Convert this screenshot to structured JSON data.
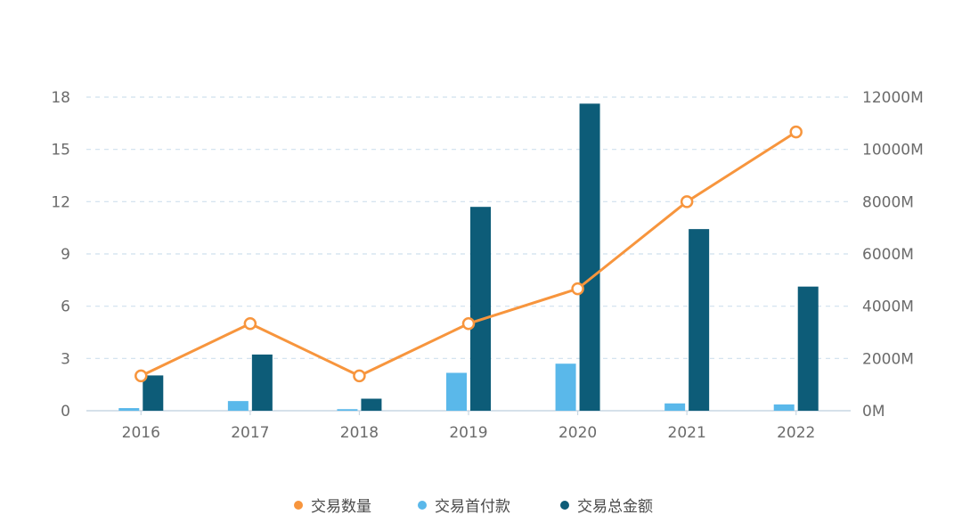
{
  "chart_data": {
    "type": "bar",
    "categories": [
      "2016",
      "2017",
      "2018",
      "2019",
      "2020",
      "2021",
      "2022"
    ],
    "series": [
      {
        "name": "交易数量",
        "kind": "line",
        "axis": "left",
        "color": "#f7953d",
        "values": [
          2,
          5,
          2,
          5,
          7,
          12,
          16
        ]
      },
      {
        "name": "交易首付款",
        "kind": "bar",
        "axis": "right",
        "color": "#5ab8ea",
        "values": [
          100,
          370,
          60,
          1450,
          1800,
          280,
          240
        ]
      },
      {
        "name": "交易总金额",
        "kind": "bar",
        "axis": "right",
        "color": "#0d5c78",
        "values": [
          1350,
          2150,
          460,
          7800,
          11750,
          6950,
          4750
        ]
      }
    ],
    "y_left": {
      "ticks": [
        "0",
        "3",
        "6",
        "9",
        "12",
        "15",
        "18"
      ],
      "ylim": [
        0,
        18
      ]
    },
    "y_right": {
      "ticks": [
        "0M",
        "2000M",
        "4000M",
        "6000M",
        "8000M",
        "10000M",
        "12000M"
      ],
      "ylim": [
        0,
        12000
      ]
    },
    "grid": true,
    "legend": "bottom-center"
  }
}
